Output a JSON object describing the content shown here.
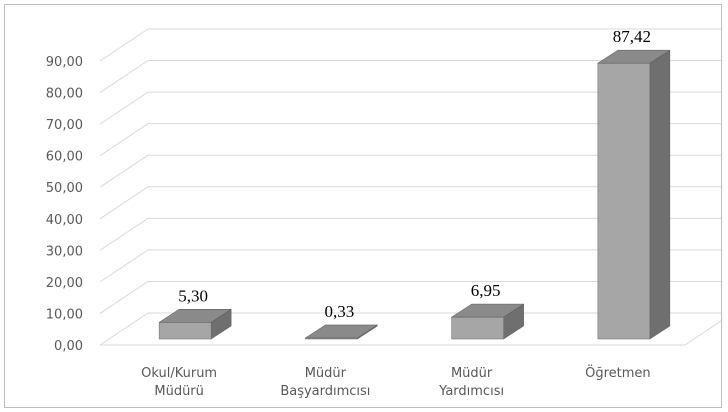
{
  "chart_data": {
    "type": "bar",
    "categories": [
      [
        "Okul/Kurum",
        "Müdürü"
      ],
      [
        "Müdür",
        "Başyardımcısı"
      ],
      [
        "Müdür",
        "Yardımcısı"
      ],
      [
        "Öğretmen"
      ]
    ],
    "values": [
      5.3,
      0.33,
      6.95,
      87.42
    ],
    "data_labels": [
      "5,30",
      "0,33",
      "6,95",
      "87,42"
    ],
    "y_ticks": [
      "0,00",
      "10,00",
      "20,00",
      "30,00",
      "40,00",
      "50,00",
      "60,00",
      "70,00",
      "80,00",
      "90,00"
    ],
    "ylim": [
      0,
      90
    ],
    "grid": true,
    "three_d": true,
    "colors": {
      "bar_front": "#a6a6a6",
      "bar_side": "#6f6f6f",
      "bar_top": "#8a8a8a",
      "grid": "#d9d9d9"
    }
  }
}
